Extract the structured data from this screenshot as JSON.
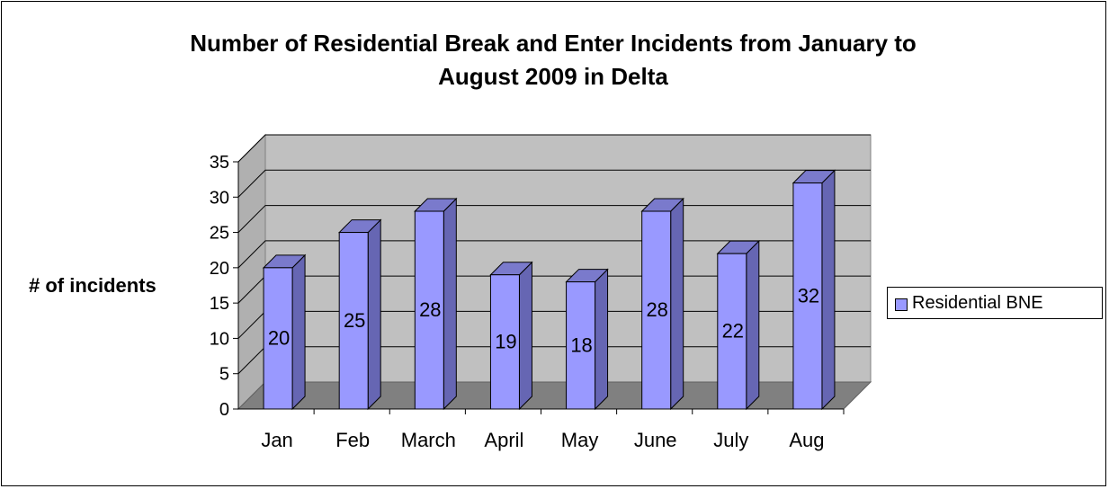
{
  "chart_data": {
    "type": "bar",
    "title": "Number of Residential Break and Enter Incidents from January to August 2009 in Delta",
    "title_lines": [
      "Number of Residential Break and Enter Incidents from January to",
      "August 2009 in Delta"
    ],
    "xlabel": "",
    "ylabel": "# of incidents",
    "categories": [
      "Jan",
      "Feb",
      "March",
      "April",
      "May",
      "June",
      "July",
      "Aug"
    ],
    "series": [
      {
        "name": "Residential BNE",
        "values": [
          20,
          25,
          28,
          19,
          18,
          28,
          22,
          32
        ]
      }
    ],
    "data_labels": [
      "20",
      "25",
      "28",
      "19",
      "18",
      "28",
      "22",
      "32"
    ],
    "ylim": [
      0,
      35
    ],
    "yticks": [
      "0",
      "5",
      "10",
      "15",
      "20",
      "25",
      "30",
      "35"
    ],
    "grid": true,
    "legend_position": "right",
    "style": "3d"
  },
  "colors": {
    "bar_front": "#9999ff",
    "bar_side": "#6666b3",
    "bar_top": "#7a7acc",
    "back_wall": "#c0c0c0",
    "side_wall": "#b0b0b0",
    "floor": "#808080",
    "grid": "#000000"
  }
}
